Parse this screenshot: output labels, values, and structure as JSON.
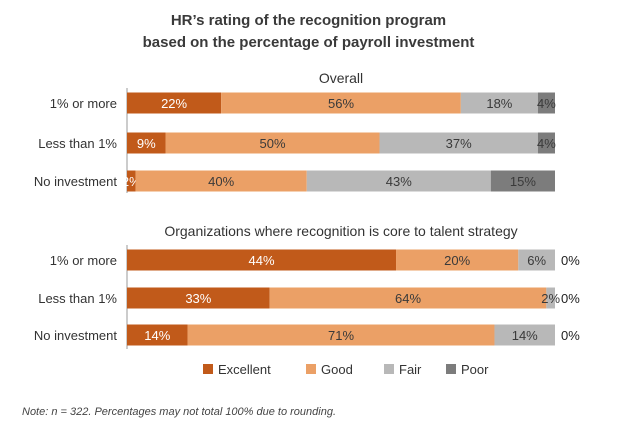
{
  "chart_data": {
    "type": "bar",
    "stacked": true,
    "orientation": "horizontal",
    "title_lines": [
      "HR’s rating of the recognition program",
      "based on the percentage of payroll investment"
    ],
    "series_names": [
      "Excellent",
      "Good",
      "Fair",
      "Poor"
    ],
    "colors": {
      "Excellent": "#c15a1a",
      "Good": "#eba066",
      "Fair": "#b8b8b8",
      "Poor": "#7c7c7c"
    },
    "legend_position": "bottom",
    "panels": [
      {
        "title": "Overall",
        "categories": [
          "1% or more",
          "Less than 1%",
          "No investment"
        ],
        "rows": [
          {
            "values": [
              22,
              56,
              18,
              4
            ],
            "labels": [
              "22%",
              "56%",
              "18%",
              "4%"
            ],
            "outside_label": ""
          },
          {
            "values": [
              9,
              50,
              37,
              4
            ],
            "labels": [
              "9%",
              "50%",
              "37%",
              "4%"
            ],
            "outside_label": ""
          },
          {
            "values": [
              2,
              40,
              43,
              15
            ],
            "labels": [
              "2%",
              "40%",
              "43%",
              "15%"
            ],
            "outside_label": ""
          }
        ]
      },
      {
        "title": "Organizations where recognition is core to talent strategy",
        "categories": [
          "1% or more",
          "Less than 1%",
          "No investment"
        ],
        "rows": [
          {
            "values": [
              44,
              20,
              6,
              0
            ],
            "labels": [
              "44%",
              "20%",
              "6%",
              "0%"
            ],
            "outside_label": "0%"
          },
          {
            "values": [
              33,
              64,
              2,
              0
            ],
            "labels": [
              "33%",
              "64%",
              "2%",
              "0%"
            ],
            "outside_label": "0%"
          },
          {
            "values": [
              14,
              71,
              14,
              0
            ],
            "labels": [
              "14%",
              "71%",
              "14%",
              "0%"
            ],
            "outside_label": "0%"
          }
        ]
      }
    ],
    "note": "Note: n = 322. Percentages may not total 100% due to rounding."
  }
}
